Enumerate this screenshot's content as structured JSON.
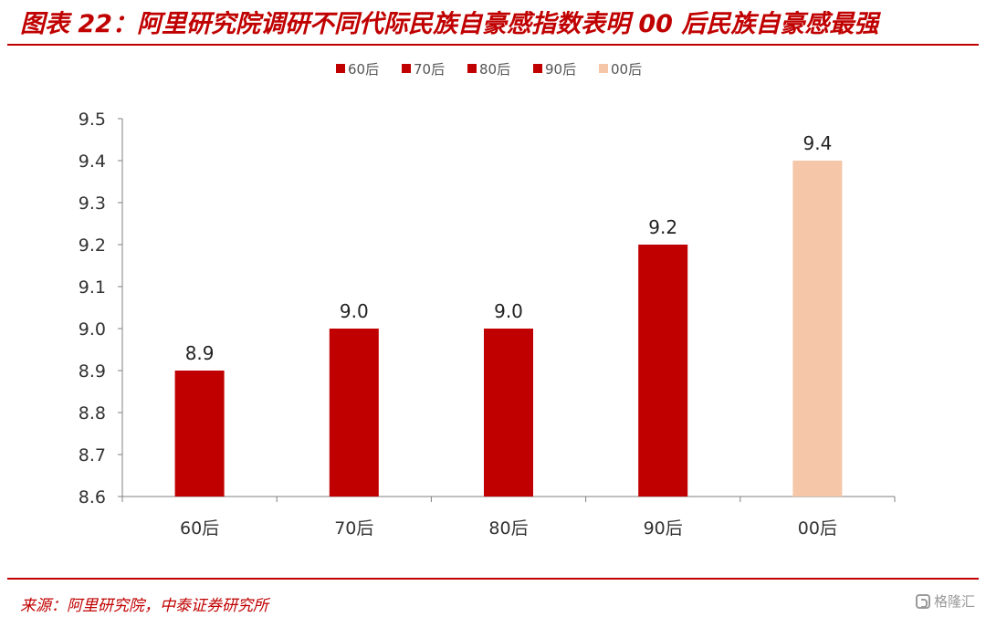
{
  "header": {
    "title": "图表 22：阿里研究院调研不同代际民族自豪感指数表明 00 后民族自豪感最强"
  },
  "footer": {
    "source": "来源：阿里研究院，中泰证券研究所",
    "watermark": "格隆汇"
  },
  "colors": {
    "accent": "#c00000",
    "highlight": "#f6c6a8",
    "axis": "#808080"
  },
  "chart_data": {
    "type": "bar",
    "title": "",
    "xlabel": "",
    "ylabel": "",
    "categories": [
      "60后",
      "70后",
      "80后",
      "90后",
      "00后"
    ],
    "values": [
      8.9,
      9.0,
      9.0,
      9.2,
      9.4
    ],
    "data_labels": [
      "8.9",
      "9.0",
      "9.0",
      "9.2",
      "9.4"
    ],
    "bar_colors": [
      "#c00000",
      "#c00000",
      "#c00000",
      "#c00000",
      "#f6c6a8"
    ],
    "ylim": [
      8.6,
      9.5
    ],
    "yticks": [
      "8.6",
      "8.7",
      "8.8",
      "8.9",
      "9.0",
      "9.1",
      "9.2",
      "9.3",
      "9.4",
      "9.5"
    ],
    "legend": {
      "position": "top-center",
      "entries": [
        "60后",
        "70后",
        "80后",
        "90后",
        "00后"
      ]
    },
    "grid": false
  }
}
